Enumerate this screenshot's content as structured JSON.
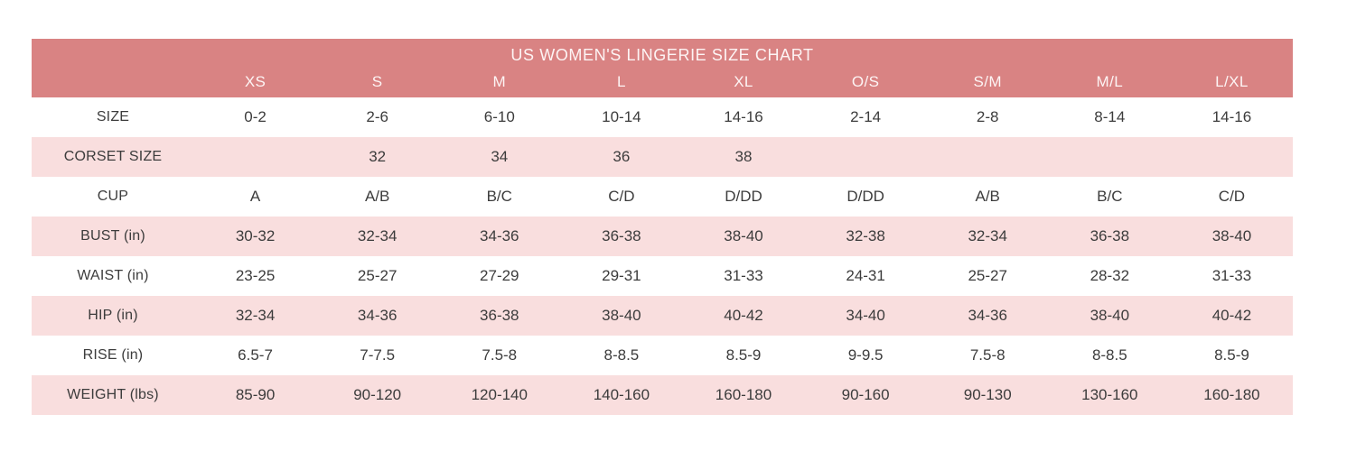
{
  "table": {
    "title": "US WOMEN'S LINGERIE SIZE CHART",
    "columns": [
      "",
      "XS",
      "S",
      "M",
      "L",
      "XL",
      "O/S",
      "S/M",
      "M/L",
      "L/XL"
    ],
    "rows": [
      {
        "label": "SIZE",
        "shaded": false,
        "values": [
          "0-2",
          "2-6",
          "6-10",
          "10-14",
          "14-16",
          "2-14",
          "2-8",
          "8-14",
          "14-16"
        ]
      },
      {
        "label": "CORSET SIZE",
        "shaded": true,
        "values": [
          "",
          "32",
          "34",
          "36",
          "38",
          "",
          "",
          "",
          ""
        ]
      },
      {
        "label": "CUP",
        "shaded": false,
        "values": [
          "A",
          "A/B",
          "B/C",
          "C/D",
          "D/DD",
          "D/DD",
          "A/B",
          "B/C",
          "C/D"
        ]
      },
      {
        "label": "BUST (in)",
        "shaded": true,
        "values": [
          "30-32",
          "32-34",
          "34-36",
          "36-38",
          "38-40",
          "32-38",
          "32-34",
          "36-38",
          "38-40"
        ]
      },
      {
        "label": "WAIST (in)",
        "shaded": false,
        "values": [
          "23-25",
          "25-27",
          "27-29",
          "29-31",
          "31-33",
          "24-31",
          "25-27",
          "28-32",
          "31-33"
        ]
      },
      {
        "label": "HIP (in)",
        "shaded": true,
        "values": [
          "32-34",
          "34-36",
          "36-38",
          "38-40",
          "40-42",
          "34-40",
          "34-36",
          "38-40",
          "40-42"
        ]
      },
      {
        "label": "RISE (in)",
        "shaded": false,
        "values": [
          "6.5-7",
          "7-7.5",
          "7.5-8",
          "8-8.5",
          "8.5-9",
          "9-9.5",
          "7.5-8",
          "8-8.5",
          "8.5-9"
        ]
      },
      {
        "label": "WEIGHT (lbs)",
        "shaded": true,
        "values": [
          "85-90",
          "90-120",
          "120-140",
          "140-160",
          "160-180",
          "90-160",
          "90-130",
          "130-160",
          "160-180"
        ]
      }
    ],
    "colors": {
      "header_bg": "#d98383",
      "header_text": "#fdf4f4",
      "stripe_bg": "#f9dede",
      "body_text": "#3c3c3c"
    }
  },
  "chart_data": {
    "type": "table",
    "title": "US WOMEN'S LINGERIE SIZE CHART",
    "columns": [
      "",
      "XS",
      "S",
      "M",
      "L",
      "XL",
      "O/S",
      "S/M",
      "M/L",
      "L/XL"
    ],
    "rows": [
      [
        "SIZE",
        "0-2",
        "2-6",
        "6-10",
        "10-14",
        "14-16",
        "2-14",
        "2-8",
        "8-14",
        "14-16"
      ],
      [
        "CORSET SIZE",
        "",
        "32",
        "34",
        "36",
        "38",
        "",
        "",
        "",
        ""
      ],
      [
        "CUP",
        "A",
        "A/B",
        "B/C",
        "C/D",
        "D/DD",
        "D/DD",
        "A/B",
        "B/C",
        "C/D"
      ],
      [
        "BUST (in)",
        "30-32",
        "32-34",
        "34-36",
        "36-38",
        "38-40",
        "32-38",
        "32-34",
        "36-38",
        "38-40"
      ],
      [
        "WAIST (in)",
        "23-25",
        "25-27",
        "27-29",
        "29-31",
        "31-33",
        "24-31",
        "25-27",
        "28-32",
        "31-33"
      ],
      [
        "HIP (in)",
        "32-34",
        "34-36",
        "36-38",
        "38-40",
        "40-42",
        "34-40",
        "34-36",
        "38-40",
        "40-42"
      ],
      [
        "RISE (in)",
        "6.5-7",
        "7-7.5",
        "7.5-8",
        "8-8.5",
        "8.5-9",
        "9-9.5",
        "7.5-8",
        "8-8.5",
        "8.5-9"
      ],
      [
        "WEIGHT (lbs)",
        "85-90",
        "90-120",
        "120-140",
        "140-160",
        "160-180",
        "90-160",
        "90-130",
        "130-160",
        "160-180"
      ]
    ],
    "layout": {
      "striped": true,
      "shaded_rows": [
        "CORSET SIZE",
        "BUST (in)",
        "HIP (in)",
        "WEIGHT (lbs)"
      ],
      "header_band_rows": 2
    }
  }
}
